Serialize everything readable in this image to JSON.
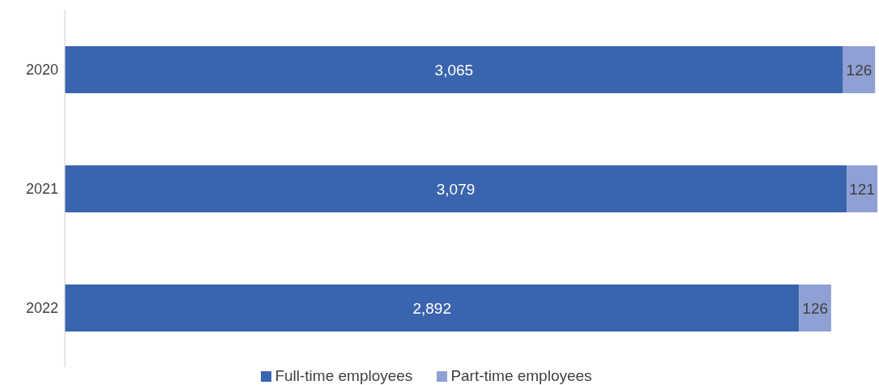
{
  "chart_data": {
    "type": "bar",
    "orientation": "horizontal",
    "stacked": true,
    "legend": "bottom",
    "grid": false,
    "categories": [
      "2020",
      "2021",
      "2022"
    ],
    "series": [
      {
        "name": "Full-time employees",
        "color": "#3a64ad",
        "values": [
          3065,
          3079,
          2892
        ],
        "value_labels": [
          "3,065",
          "3,079",
          "2,892"
        ]
      },
      {
        "name": "Part-time employees",
        "color": "#8fa1d4",
        "values": [
          126,
          121,
          126
        ],
        "value_labels": [
          "126",
          "121",
          "126"
        ]
      }
    ]
  }
}
